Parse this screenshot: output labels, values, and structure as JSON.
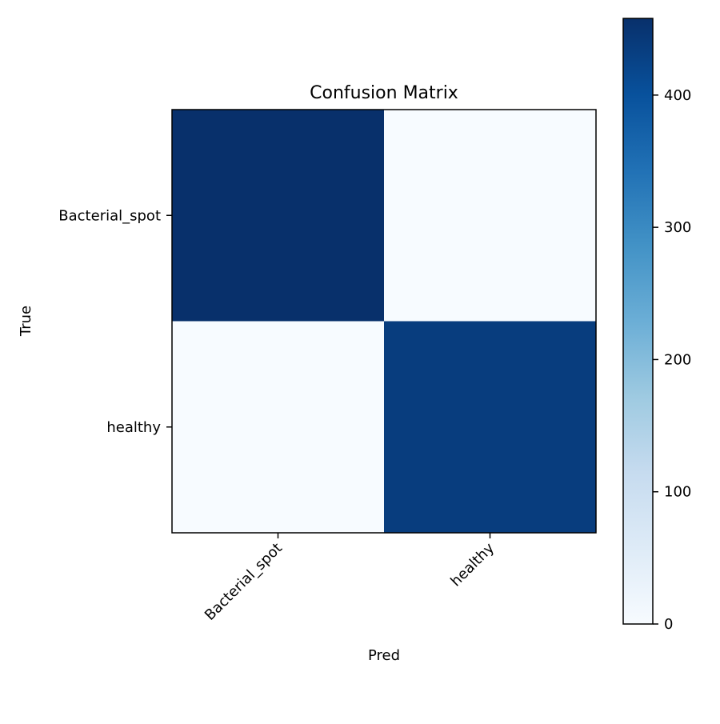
{
  "chart_data": {
    "type": "heatmap",
    "title": "Confusion Matrix",
    "xlabel": "Pred",
    "ylabel": "True",
    "x_categories": [
      "Bacterial_spot",
      "healthy"
    ],
    "y_categories": [
      "Bacterial_spot",
      "healthy"
    ],
    "values": [
      [
        458,
        0
      ],
      [
        0,
        436
      ]
    ],
    "colormap": "Blues",
    "colorbar": {
      "min": 0,
      "max": 458,
      "ticks": [
        0,
        100,
        200,
        300,
        400
      ]
    },
    "colors": {
      "low": "#f7fbff",
      "high": "#08306b",
      "axis": "#000000"
    }
  }
}
